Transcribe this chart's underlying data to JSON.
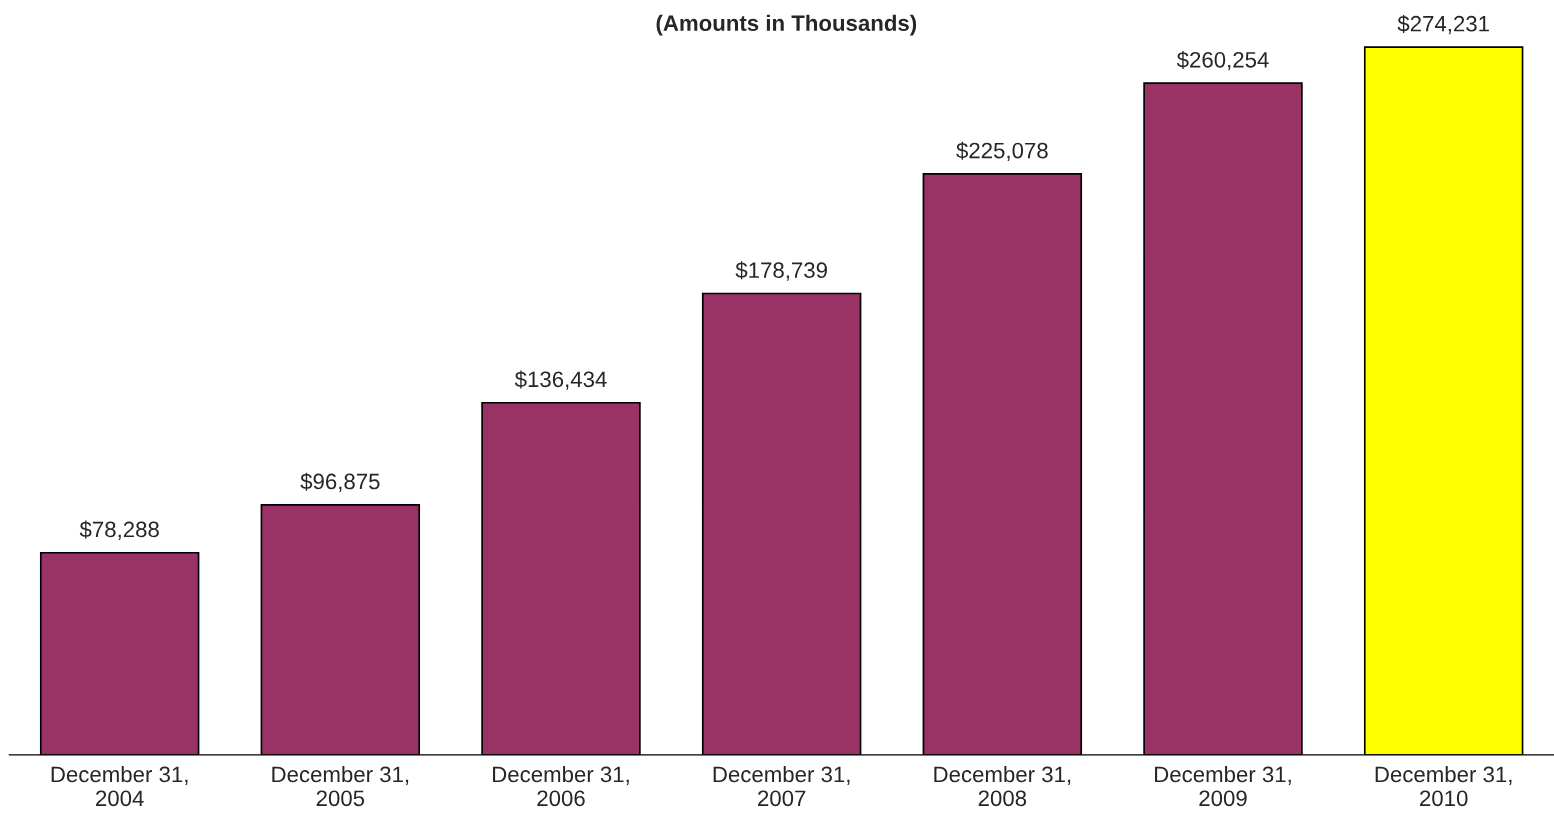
{
  "chart_data": {
    "type": "bar",
    "title": "(Amounts in Thousands)",
    "categories": [
      "December 31,\n2004",
      "December 31,\n2005",
      "December 31,\n2006",
      "December 31,\n2007",
      "December 31,\n2008",
      "December 31,\n2009",
      "December 31,\n2010"
    ],
    "values": [
      78288,
      96875,
      136434,
      178739,
      225078,
      260254,
      274231
    ],
    "value_labels": [
      "$78,288",
      "$96,875",
      "$136,434",
      "$178,739",
      "$225,078",
      "$260,254",
      "$274,231"
    ],
    "colors": [
      "#993366",
      "#993366",
      "#993366",
      "#993366",
      "#993366",
      "#993366",
      "#ffff00"
    ],
    "tick_labels": "x",
    "grid": false,
    "legend": false
  }
}
